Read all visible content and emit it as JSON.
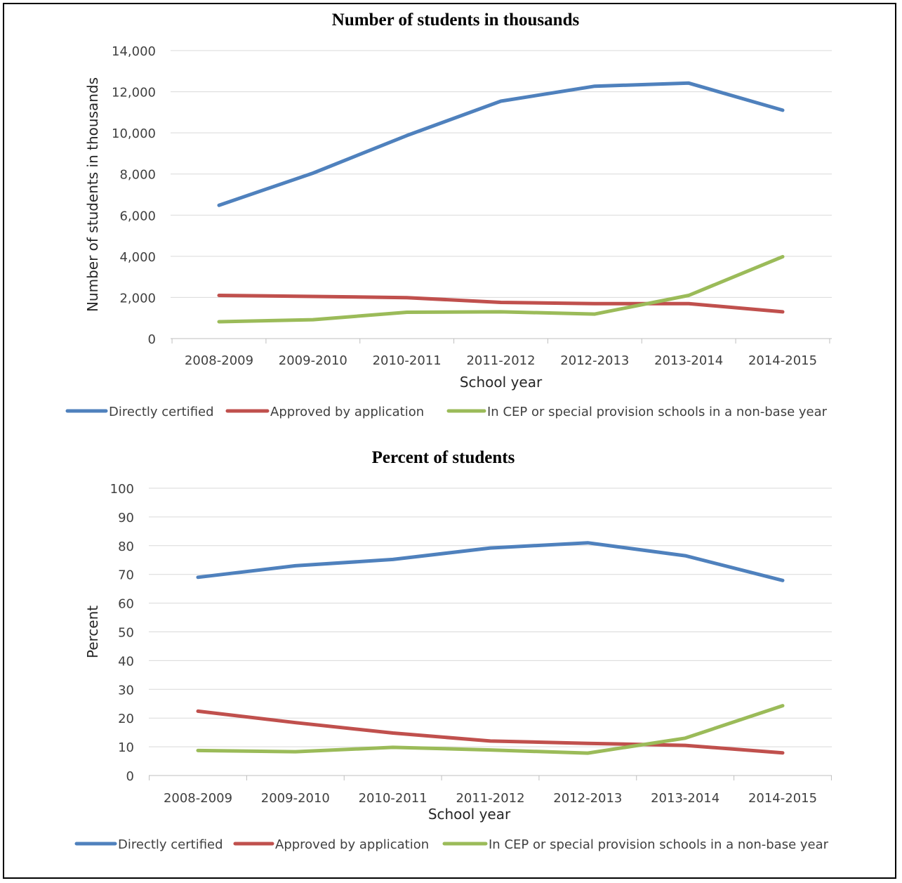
{
  "chart_data": [
    {
      "type": "line",
      "title": "Number of students in thousands",
      "xlabel": "School year",
      "ylabel": "Number of students in thousands",
      "categories": [
        "2008-2009",
        "2009-2010",
        "2010-2011",
        "2011-2012",
        "2012-2013",
        "2013-2014",
        "2014-2015"
      ],
      "ylim": [
        0,
        14000
      ],
      "yticks": [
        "0",
        "2,000",
        "4,000",
        "6,000",
        "8,000",
        "10,000",
        "12,000",
        "14,000"
      ],
      "grid": true,
      "legend_position": "bottom",
      "series": [
        {
          "name": "Directly certified",
          "color": "#4F81BD",
          "values": [
            6480,
            8040,
            9870,
            11540,
            12270,
            12420,
            11100
          ]
        },
        {
          "name": "Approved by application",
          "color": "#C0504D",
          "values": [
            2100,
            2050,
            1990,
            1760,
            1700,
            1700,
            1300
          ]
        },
        {
          "name": "In CEP or special provision schools in a non-base year",
          "color": "#9BBB59",
          "values": [
            820,
            920,
            1280,
            1300,
            1190,
            2100,
            3980
          ]
        }
      ]
    },
    {
      "type": "line",
      "title": "Percent of students",
      "xlabel": "School year",
      "ylabel": "Percent",
      "categories": [
        "2008-2009",
        "2009-2010",
        "2010-2011",
        "2011-2012",
        "2012-2013",
        "2013-2014",
        "2014-2015"
      ],
      "ylim": [
        0,
        100
      ],
      "yticks": [
        "0",
        "10",
        "20",
        "30",
        "40",
        "50",
        "60",
        "70",
        "80",
        "90",
        "100"
      ],
      "grid": true,
      "legend_position": "bottom",
      "series": [
        {
          "name": "Directly certified",
          "color": "#4F81BD",
          "values": [
            69,
            73,
            75.2,
            79.2,
            81,
            76.5,
            67.9
          ]
        },
        {
          "name": "Approved by application",
          "color": "#C0504D",
          "values": [
            22.4,
            18.4,
            14.8,
            12,
            11.2,
            10.5,
            7.9
          ]
        },
        {
          "name": "In CEP or special provision schools in a non-base year",
          "color": "#9BBB59",
          "values": [
            8.7,
            8.3,
            9.8,
            8.9,
            7.8,
            13,
            24.3
          ]
        }
      ]
    }
  ]
}
